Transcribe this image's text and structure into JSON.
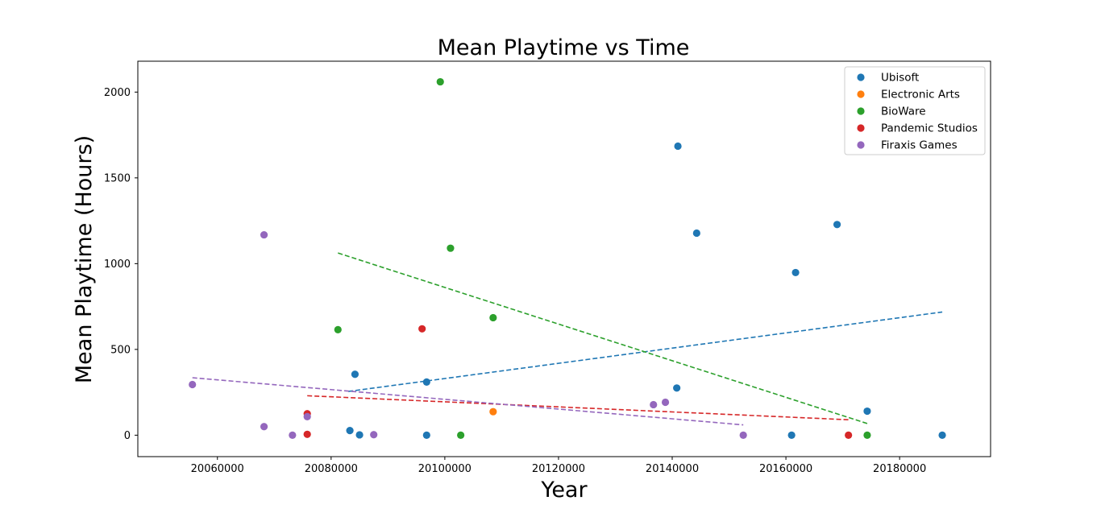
{
  "chart_data": {
    "type": "scatter",
    "title": "Mean Playtime vs Time",
    "xlabel": "Year",
    "ylabel": "Mean Playtime (Hours)",
    "xlim": [
      20046000,
      20196000
    ],
    "ylim": [
      -125,
      2180
    ],
    "xticks": [
      20060000,
      20080000,
      20100000,
      20120000,
      20140000,
      20160000,
      20180000
    ],
    "xtick_labels": [
      "20060000",
      "20080000",
      "20100000",
      "20120000",
      "20140000",
      "20160000",
      "20180000"
    ],
    "yticks": [
      0,
      500,
      1000,
      1500,
      2000
    ],
    "ytick_labels": [
      "0",
      "500",
      "1000",
      "1500",
      "2000"
    ],
    "legend_position": "top-right",
    "series": [
      {
        "name": "Ubisoft",
        "color": "#1f77b4",
        "points": [
          [
            20084200,
            355
          ],
          [
            20083300,
            27
          ],
          [
            20085000,
            2
          ],
          [
            20096800,
            310
          ],
          [
            20096800,
            0
          ],
          [
            20141000,
            1685
          ],
          [
            20144300,
            1178
          ],
          [
            20140800,
            275
          ],
          [
            20161700,
            948
          ],
          [
            20161000,
            0
          ],
          [
            20169000,
            1228
          ],
          [
            20174300,
            140
          ],
          [
            20187500,
            0
          ]
        ],
        "trend": [
          [
            20083000,
            255
          ],
          [
            20187500,
            718
          ]
        ]
      },
      {
        "name": "Electronic Arts",
        "color": "#ff7f0e",
        "points": [
          [
            20108500,
            137
          ]
        ],
        "trend": null
      },
      {
        "name": "BioWare",
        "color": "#2ca02c",
        "points": [
          [
            20099200,
            2060
          ],
          [
            20101000,
            1090
          ],
          [
            20081200,
            615
          ],
          [
            20108500,
            685
          ],
          [
            20102800,
            0
          ],
          [
            20174300,
            0
          ]
        ],
        "trend": [
          [
            20081200,
            1062
          ],
          [
            20174300,
            68
          ]
        ]
      },
      {
        "name": "Pandemic Studios",
        "color": "#d62728",
        "points": [
          [
            20075800,
            125
          ],
          [
            20075800,
            5
          ],
          [
            20096000,
            620
          ],
          [
            20171000,
            0
          ]
        ],
        "trend": [
          [
            20075800,
            230
          ],
          [
            20171000,
            90
          ]
        ]
      },
      {
        "name": "Firaxis Games",
        "color": "#9467bd",
        "points": [
          [
            20055600,
            295
          ],
          [
            20068200,
            1168
          ],
          [
            20068200,
            50
          ],
          [
            20073200,
            0
          ],
          [
            20075800,
            108
          ],
          [
            20087500,
            3
          ],
          [
            20136700,
            178
          ],
          [
            20138800,
            192
          ],
          [
            20152500,
            0
          ]
        ],
        "trend": [
          [
            20055600,
            335
          ],
          [
            20152500,
            60
          ]
        ]
      }
    ]
  }
}
